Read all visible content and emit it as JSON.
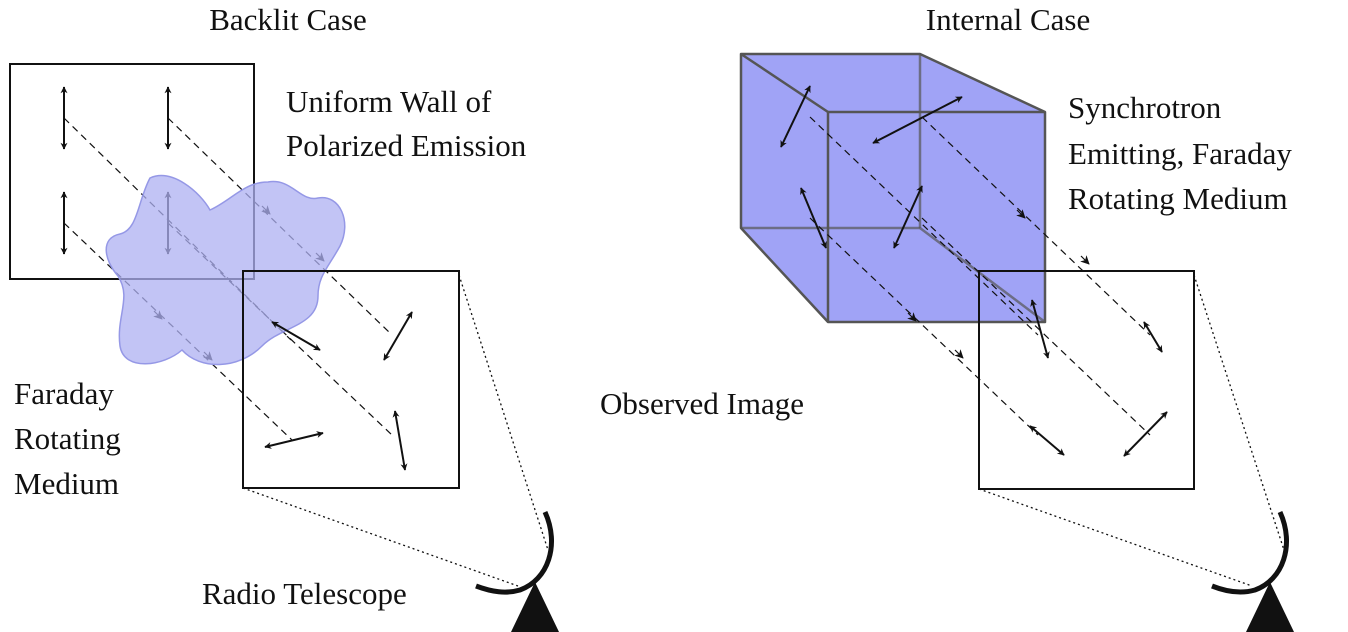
{
  "labels": {
    "backlit_title": "Backlit Case",
    "internal_title": "Internal Case",
    "wall_line1": "Uniform Wall of",
    "wall_line2": "Polarized Emission",
    "faraday_line1": "Faraday",
    "faraday_line2": "Rotating",
    "faraday_line3": "Medium",
    "radio_telescope": "Radio Telescope",
    "observed_image": "Observed Image",
    "synchrotron_line1": "Synchrotron",
    "synchrotron_line2": "Emitting, Faraday",
    "synchrotron_line3": "Rotating Medium"
  },
  "colors": {
    "cloud_fill": "#aeb0f2",
    "cube_fill": "#8f93f5",
    "stroke": "#111111"
  }
}
